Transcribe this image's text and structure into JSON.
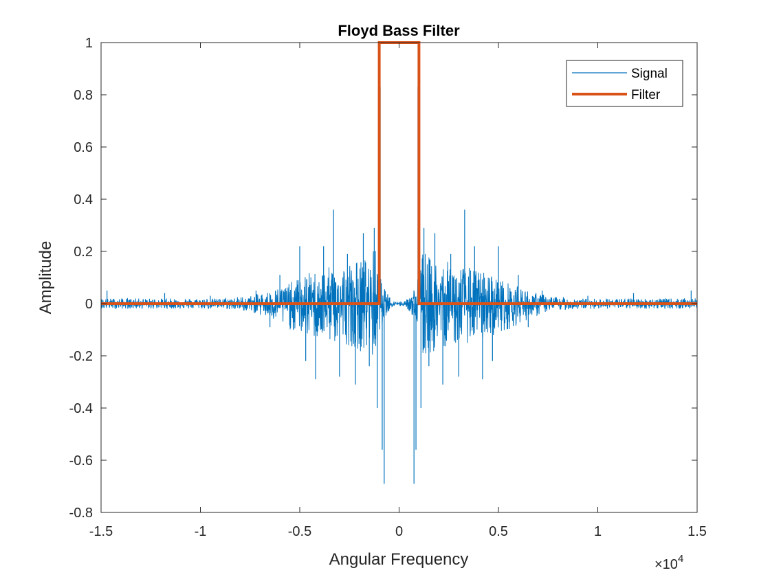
{
  "chart_data": {
    "type": "line",
    "title": "Floyd Bass Filter",
    "xlabel": "Angular Frequency",
    "ylabel": "Amplitude",
    "xlim": [
      -15000,
      15000
    ],
    "ylim": [
      -0.8,
      1
    ],
    "x_tick_values": [
      -15000,
      -10000,
      -5000,
      0,
      5000,
      10000,
      15000
    ],
    "x_tick_labels": [
      "-1.5",
      "-1",
      "-0.5",
      "0",
      "0.5",
      "1",
      "1.5"
    ],
    "x_exponent_label": "×10",
    "x_exponent_power": "4",
    "y_tick_values": [
      -0.8,
      -0.6,
      -0.4,
      -0.2,
      0,
      0.2,
      0.4,
      0.6,
      0.8,
      1
    ],
    "y_tick_labels": [
      "-0.8",
      "-0.6",
      "-0.4",
      "-0.2",
      "0",
      "0.2",
      "0.4",
      "0.6",
      "0.8",
      "1"
    ],
    "grid": false,
    "legend_position": "top-right",
    "series": [
      {
        "name": "Signal",
        "color": "#0072BD",
        "style": "thin line",
        "envelope": {
          "x": [
            -15000,
            -13000,
            -11000,
            -9000,
            -7500,
            -6500,
            -5500,
            -4500,
            -3500,
            -2500,
            -1500,
            -1200,
            -1000,
            -900,
            -700,
            -300,
            0,
            300,
            700,
            900,
            1000,
            1200,
            1500,
            2500,
            3500,
            4500,
            5500,
            6500,
            7500,
            9000,
            11000,
            13000,
            15000
          ],
          "upper": [
            0.02,
            0.02,
            0.02,
            0.02,
            0.03,
            0.05,
            0.08,
            0.12,
            0.14,
            0.16,
            0.18,
            0.22,
            0.1,
            0.1,
            0.05,
            0.01,
            0.01,
            0.01,
            0.05,
            0.1,
            0.1,
            0.22,
            0.18,
            0.16,
            0.14,
            0.12,
            0.08,
            0.05,
            0.03,
            0.02,
            0.02,
            0.02,
            0.02
          ],
          "lower": [
            -0.02,
            -0.02,
            -0.02,
            -0.02,
            -0.03,
            -0.06,
            -0.1,
            -0.13,
            -0.15,
            -0.16,
            -0.2,
            -0.22,
            -0.1,
            -0.1,
            -0.05,
            -0.01,
            -0.01,
            -0.01,
            -0.05,
            -0.1,
            -0.1,
            -0.22,
            -0.2,
            -0.16,
            -0.15,
            -0.13,
            -0.1,
            -0.06,
            -0.03,
            -0.02,
            -0.02,
            -0.02,
            -0.02
          ]
        },
        "peaks": [
          {
            "x": -14700,
            "y": 0.05
          },
          {
            "x": -11800,
            "y": 0.04
          },
          {
            "x": -9500,
            "y": 0.03
          },
          {
            "x": -7200,
            "y": 0.05
          },
          {
            "x": -6500,
            "y": -0.09
          },
          {
            "x": -6000,
            "y": 0.11
          },
          {
            "x": -5000,
            "y": 0.22
          },
          {
            "x": -4700,
            "y": -0.22
          },
          {
            "x": -4200,
            "y": -0.29
          },
          {
            "x": -3800,
            "y": 0.22
          },
          {
            "x": -3300,
            "y": 0.36
          },
          {
            "x": -3000,
            "y": -0.28
          },
          {
            "x": -2600,
            "y": 0.19
          },
          {
            "x": -2200,
            "y": -0.31
          },
          {
            "x": -1800,
            "y": 0.27
          },
          {
            "x": -1500,
            "y": -0.24
          },
          {
            "x": -1250,
            "y": 0.29
          },
          {
            "x": -1100,
            "y": -0.4
          },
          {
            "x": -950,
            "y": 0.83
          },
          {
            "x": -850,
            "y": -0.56
          },
          {
            "x": -750,
            "y": -0.69
          },
          {
            "x": 750,
            "y": -0.69
          },
          {
            "x": 850,
            "y": -0.56
          },
          {
            "x": 950,
            "y": 0.83
          },
          {
            "x": 1100,
            "y": -0.4
          },
          {
            "x": 1250,
            "y": 0.29
          },
          {
            "x": 1500,
            "y": -0.24
          },
          {
            "x": 1800,
            "y": 0.27
          },
          {
            "x": 2200,
            "y": -0.31
          },
          {
            "x": 2600,
            "y": 0.19
          },
          {
            "x": 3000,
            "y": -0.28
          },
          {
            "x": 3300,
            "y": 0.36
          },
          {
            "x": 3800,
            "y": 0.22
          },
          {
            "x": 4200,
            "y": -0.29
          },
          {
            "x": 4700,
            "y": -0.22
          },
          {
            "x": 5000,
            "y": 0.22
          },
          {
            "x": 6000,
            "y": 0.11
          },
          {
            "x": 6500,
            "y": -0.09
          },
          {
            "x": 7200,
            "y": 0.05
          },
          {
            "x": 9500,
            "y": 0.03
          },
          {
            "x": 11800,
            "y": 0.04
          },
          {
            "x": 14700,
            "y": 0.05
          }
        ]
      },
      {
        "name": "Filter",
        "color": "#D95319",
        "style": "thick line",
        "x": [
          -15000,
          -1000,
          -1000,
          1000,
          1000,
          15000
        ],
        "y": [
          0,
          0,
          1,
          1,
          0,
          0
        ]
      }
    ]
  }
}
